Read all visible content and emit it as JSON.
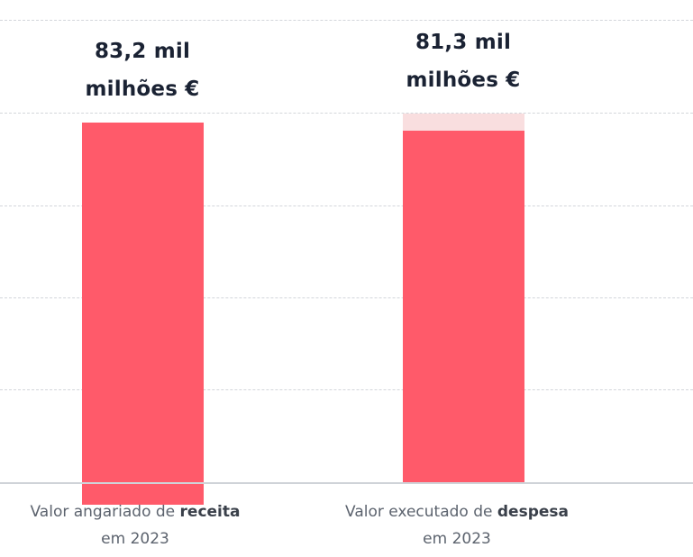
{
  "chart_data": {
    "type": "bar",
    "categories": [
      {
        "prefix": "Valor angariado de ",
        "bold": "receita",
        "line2": "em 2023"
      },
      {
        "prefix": "Valor executado de ",
        "bold": "despesa",
        "line2": "em 2023"
      }
    ],
    "values": [
      83.2,
      81.3
    ],
    "value_labels": [
      {
        "line1": "83,2 mil",
        "line2": "milhões €"
      },
      {
        "line1": "81,3 mil",
        "line2": "milhões €"
      }
    ],
    "ghost_value": 85.3,
    "grid": true,
    "colors": {
      "bar": "#ff5a6a",
      "ghost": "#f9dedf",
      "text": "#1a2233",
      "category_text": "#5c636e"
    }
  }
}
